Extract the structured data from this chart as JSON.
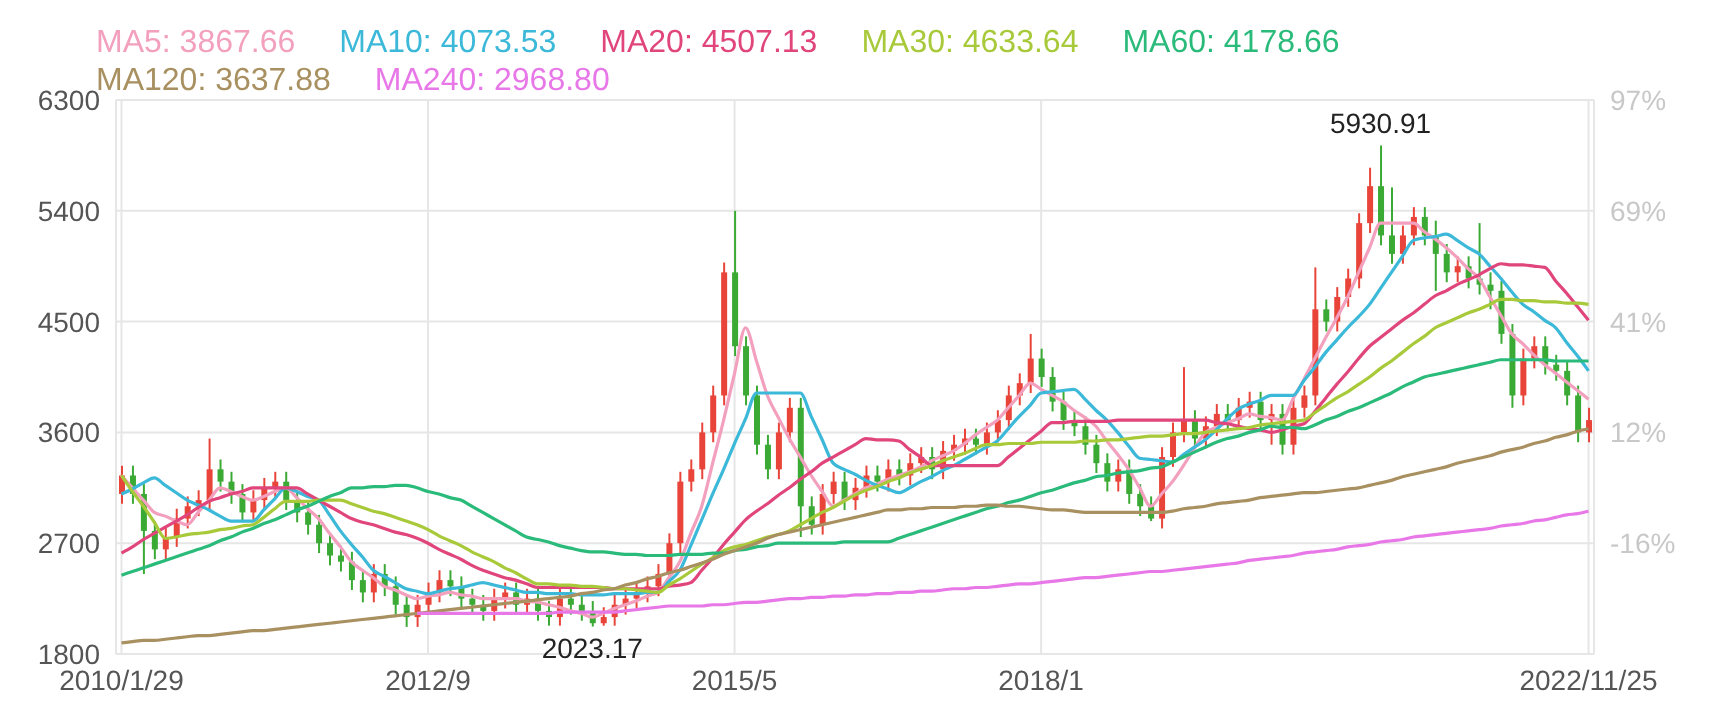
{
  "chart_data": {
    "type": "candlestick",
    "categories": [
      "2010/1/29",
      null,
      null,
      null,
      null,
      null,
      null,
      null,
      null,
      null,
      null,
      null,
      null,
      null,
      null,
      null,
      null,
      null,
      null,
      null,
      null,
      null,
      null,
      null,
      null,
      null,
      null,
      null,
      "2012/9",
      null,
      null,
      null,
      null,
      null,
      null,
      null,
      null,
      null,
      null,
      null,
      null,
      null,
      null,
      null,
      null,
      null,
      null,
      null,
      null,
      null,
      null,
      null,
      null,
      null,
      null,
      null,
      "2015/5",
      null,
      null,
      null,
      null,
      null,
      null,
      null,
      null,
      null,
      null,
      null,
      null,
      null,
      null,
      null,
      null,
      null,
      null,
      null,
      null,
      null,
      null,
      null,
      null,
      null,
      null,
      null,
      "2018/1",
      null,
      null,
      null,
      null,
      null,
      null,
      null,
      null,
      null,
      null,
      null,
      null,
      null,
      null,
      null,
      null,
      null,
      null,
      null,
      null,
      null,
      null,
      null,
      null,
      null,
      null,
      null,
      null,
      null,
      null,
      null,
      null,
      null,
      null,
      null,
      null,
      null,
      null,
      null,
      null,
      null,
      null,
      null,
      null,
      null,
      null,
      null,
      null,
      null,
      "2022/11/25"
    ],
    "ohlc": [
      [
        3100,
        3330,
        3020,
        3250
      ],
      [
        3250,
        3330,
        3020,
        3100
      ],
      [
        3100,
        3180,
        2450,
        2800
      ],
      [
        2800,
        2880,
        2570,
        2650
      ],
      [
        2650,
        2830,
        2570,
        2750
      ],
      [
        2750,
        2980,
        2670,
        2900
      ],
      [
        2900,
        3080,
        2820,
        3000
      ],
      [
        3000,
        3130,
        2920,
        3050
      ],
      [
        3050,
        3550,
        2970,
        3300
      ],
      [
        3300,
        3380,
        3120,
        3200
      ],
      [
        3200,
        3280,
        3020,
        3100
      ],
      [
        3100,
        3180,
        2870,
        2950
      ],
      [
        2950,
        3130,
        2870,
        3050
      ],
      [
        3050,
        3230,
        2970,
        3150
      ],
      [
        3150,
        3280,
        3070,
        3200
      ],
      [
        3200,
        3280,
        2970,
        3050
      ],
      [
        3050,
        3130,
        2870,
        2950
      ],
      [
        2950,
        3030,
        2770,
        2850
      ],
      [
        2850,
        2930,
        2620,
        2700
      ],
      [
        2700,
        2780,
        2520,
        2600
      ],
      [
        2600,
        2680,
        2470,
        2550
      ],
      [
        2550,
        2630,
        2320,
        2400
      ],
      [
        2400,
        2480,
        2220,
        2300
      ],
      [
        2300,
        2530,
        2220,
        2450
      ],
      [
        2450,
        2530,
        2270,
        2350
      ],
      [
        2350,
        2430,
        2120,
        2200
      ],
      [
        2200,
        2280,
        2020,
        2100
      ],
      [
        2100,
        2280,
        2020,
        2200
      ],
      [
        2200,
        2380,
        2120,
        2300
      ],
      [
        2300,
        2480,
        2220,
        2400
      ],
      [
        2400,
        2480,
        2270,
        2350
      ],
      [
        2350,
        2430,
        2170,
        2250
      ],
      [
        2250,
        2330,
        2120,
        2200
      ],
      [
        2200,
        2280,
        2070,
        2150
      ],
      [
        2150,
        2330,
        2070,
        2250
      ],
      [
        2250,
        2380,
        2170,
        2300
      ],
      [
        2300,
        2380,
        2120,
        2200
      ],
      [
        2200,
        2330,
        2120,
        2250
      ],
      [
        2250,
        2330,
        2070,
        2150
      ],
      [
        2150,
        2230,
        2030,
        2100
      ],
      [
        2100,
        2330,
        2030,
        2250
      ],
      [
        2250,
        2330,
        2120,
        2200
      ],
      [
        2200,
        2280,
        2070,
        2150
      ],
      [
        2150,
        2230,
        2023.17,
        2050
      ],
      [
        2050,
        2180,
        2030,
        2100
      ],
      [
        2100,
        2280,
        2030,
        2200
      ],
      [
        2200,
        2330,
        2120,
        2250
      ],
      [
        2250,
        2380,
        2170,
        2300
      ],
      [
        2300,
        2430,
        2220,
        2350
      ],
      [
        2350,
        2530,
        2270,
        2450
      ],
      [
        2450,
        2780,
        2370,
        2700
      ],
      [
        2700,
        3280,
        2620,
        3200
      ],
      [
        3200,
        3380,
        3120,
        3300
      ],
      [
        3300,
        3680,
        3220,
        3600
      ],
      [
        3600,
        3980,
        3520,
        3900
      ],
      [
        3900,
        4980,
        3820,
        4900
      ],
      [
        4900,
        5400,
        4220,
        4300
      ],
      [
        4300,
        4380,
        3820,
        3900
      ],
      [
        3900,
        3980,
        3420,
        3500
      ],
      [
        3500,
        3580,
        3220,
        3300
      ],
      [
        3300,
        3680,
        3220,
        3600
      ],
      [
        3600,
        3880,
        3520,
        3800
      ],
      [
        3800,
        3880,
        2750,
        3000
      ],
      [
        3000,
        3080,
        2770,
        2850
      ],
      [
        2850,
        3180,
        2770,
        3100
      ],
      [
        3100,
        3280,
        3020,
        3200
      ],
      [
        3200,
        3280,
        2970,
        3050
      ],
      [
        3050,
        3230,
        2970,
        3150
      ],
      [
        3150,
        3330,
        3070,
        3250
      ],
      [
        3250,
        3330,
        3120,
        3200
      ],
      [
        3200,
        3380,
        3120,
        3300
      ],
      [
        3300,
        3380,
        3170,
        3250
      ],
      [
        3250,
        3430,
        3170,
        3350
      ],
      [
        3350,
        3480,
        3270,
        3400
      ],
      [
        3400,
        3480,
        3220,
        3300
      ],
      [
        3300,
        3530,
        3220,
        3450
      ],
      [
        3450,
        3580,
        3370,
        3500
      ],
      [
        3500,
        3630,
        3420,
        3550
      ],
      [
        3550,
        3630,
        3420,
        3500
      ],
      [
        3500,
        3680,
        3420,
        3600
      ],
      [
        3600,
        3780,
        3520,
        3700
      ],
      [
        3700,
        3980,
        3620,
        3900
      ],
      [
        3900,
        4080,
        3820,
        4000
      ],
      [
        4000,
        4400,
        3920,
        4200
      ],
      [
        4200,
        4280,
        3970,
        4050
      ],
      [
        4050,
        4130,
        3770,
        3850
      ],
      [
        3850,
        3930,
        3620,
        3700
      ],
      [
        3700,
        3780,
        3570,
        3650
      ],
      [
        3650,
        3730,
        3420,
        3500
      ],
      [
        3500,
        3580,
        3270,
        3350
      ],
      [
        3350,
        3430,
        3120,
        3200
      ],
      [
        3200,
        3380,
        3120,
        3300
      ],
      [
        3300,
        3380,
        3020,
        3100
      ],
      [
        3100,
        3180,
        2920,
        3000
      ],
      [
        3000,
        3080,
        2880,
        2900
      ],
      [
        2900,
        3480,
        2820,
        3400
      ],
      [
        3400,
        3680,
        3320,
        3600
      ],
      [
        3600,
        4130,
        3520,
        3700
      ],
      [
        3700,
        3780,
        3470,
        3550
      ],
      [
        3550,
        3730,
        3470,
        3650
      ],
      [
        3650,
        3830,
        3570,
        3750
      ],
      [
        3750,
        3830,
        3620,
        3700
      ],
      [
        3700,
        3880,
        3620,
        3800
      ],
      [
        3800,
        3930,
        3720,
        3850
      ],
      [
        3850,
        3930,
        3620,
        3700
      ],
      [
        3700,
        3830,
        3500,
        3750
      ],
      [
        3750,
        3830,
        3420,
        3500
      ],
      [
        3500,
        3880,
        3420,
        3800
      ],
      [
        3800,
        3980,
        3720,
        3900
      ],
      [
        3900,
        4940,
        3820,
        4600
      ],
      [
        4600,
        4680,
        4420,
        4500
      ],
      [
        4500,
        4780,
        4420,
        4700
      ],
      [
        4700,
        4930,
        4620,
        4850
      ],
      [
        4850,
        5380,
        4770,
        5300
      ],
      [
        5300,
        5750,
        5220,
        5600
      ],
      [
        5600,
        5930.91,
        5120,
        5200
      ],
      [
        5200,
        5590,
        4970,
        5050
      ],
      [
        5050,
        5280,
        4970,
        5200
      ],
      [
        5200,
        5430,
        5120,
        5350
      ],
      [
        5350,
        5430,
        5120,
        5200
      ],
      [
        5200,
        5320,
        4750,
        5050
      ],
      [
        5050,
        5130,
        4820,
        4900
      ],
      [
        4900,
        5030,
        4820,
        4950
      ],
      [
        4950,
        5030,
        4770,
        4850
      ],
      [
        4850,
        5300,
        4720,
        4800
      ],
      [
        4800,
        4900,
        4600,
        4750
      ],
      [
        4750,
        4830,
        4320,
        4400
      ],
      [
        4400,
        4480,
        3800,
        3900
      ],
      [
        3900,
        4280,
        3820,
        4200
      ],
      [
        4200,
        4380,
        4120,
        4300
      ],
      [
        4300,
        4380,
        4070,
        4150
      ],
      [
        4150,
        4230,
        4020,
        4100
      ],
      [
        4100,
        4180,
        3820,
        3900
      ],
      [
        3900,
        3980,
        3520,
        3600
      ],
      [
        3600,
        3800,
        3520,
        3700
      ]
    ],
    "series": [
      {
        "type": "line",
        "name": "MA5: 3867.66",
        "color": "#f2a0bd",
        "values": [
          3250,
          3150,
          3050,
          2950,
          2920,
          2880,
          2850,
          2950,
          3050,
          3150,
          3120,
          3080,
          3050,
          3080,
          3120,
          3150,
          3070,
          2980,
          2900,
          2780,
          2670,
          2550,
          2480,
          2420,
          2350,
          2320,
          2280,
          2250,
          2270,
          2280,
          2300,
          2280,
          2270,
          2250,
          2250,
          2250,
          2250,
          2230,
          2220,
          2200,
          2180,
          2150,
          2130,
          2100,
          2130,
          2170,
          2200,
          2230,
          2270,
          2300,
          2420,
          2550,
          2780,
          3000,
          3350,
          3700,
          4080,
          4450,
          4180,
          3900,
          3720,
          3550,
          3400,
          3250,
          3120,
          3000,
          3050,
          3100,
          3150,
          3180,
          3220,
          3250,
          3280,
          3320,
          3370,
          3410,
          3450,
          3510,
          3580,
          3640,
          3700,
          3800,
          3900,
          4000,
          3950,
          3900,
          3850,
          3780,
          3720,
          3650,
          3530,
          3420,
          3300,
          3150,
          3000,
          3100,
          3200,
          3330,
          3470,
          3600,
          3640,
          3680,
          3710,
          3750,
          3730,
          3720,
          3700,
          3870,
          4030,
          4200,
          4370,
          4530,
          4700,
          4900,
          5100,
          5300,
          5300,
          5300,
          5300,
          5230,
          5170,
          5100,
          5020,
          4930,
          4850,
          4700,
          4550,
          4400,
          4320,
          4230,
          4150,
          4080,
          4010,
          3940,
          3870
        ]
      },
      {
        "type": "line",
        "name": "MA10: 4073.53",
        "color": "#3cb8d8",
        "values": [
          3100,
          3140,
          3190,
          3230,
          3170,
          3110,
          3050,
          3010,
          2970,
          2920,
          2880,
          2880,
          2880,
          2970,
          3060,
          3150,
          3120,
          3080,
          3050,
          2930,
          2800,
          2690,
          2590,
          2480,
          2430,
          2380,
          2330,
          2310,
          2290,
          2310,
          2330,
          2340,
          2360,
          2380,
          2360,
          2340,
          2320,
          2300,
          2300,
          2290,
          2290,
          2290,
          2280,
          2280,
          2280,
          2290,
          2290,
          2290,
          2300,
          2300,
          2390,
          2480,
          2680,
          2890,
          3100,
          3300,
          3510,
          3710,
          3920,
          3920,
          3920,
          3920,
          3920,
          3730,
          3540,
          3350,
          3300,
          3260,
          3210,
          3170,
          3140,
          3110,
          3150,
          3200,
          3240,
          3290,
          3330,
          3380,
          3430,
          3480,
          3530,
          3630,
          3730,
          3820,
          3920,
          3930,
          3940,
          3950,
          3870,
          3780,
          3700,
          3600,
          3490,
          3390,
          3380,
          3370,
          3360,
          3420,
          3480,
          3540,
          3620,
          3710,
          3790,
          3830,
          3860,
          3900,
          3900,
          3900,
          4020,
          4130,
          4250,
          4350,
          4450,
          4540,
          4640,
          4770,
          4900,
          5030,
          5160,
          5180,
          5190,
          5210,
          5160,
          5100,
          5050,
          4950,
          4850,
          4740,
          4640,
          4580,
          4510,
          4450,
          4330,
          4220,
          4100
        ]
      },
      {
        "type": "line",
        "name": "MA20: 4507.13",
        "color": "#e0457b",
        "values": [
          2620,
          2670,
          2730,
          2780,
          2830,
          2880,
          2930,
          2990,
          3040,
          3070,
          3100,
          3120,
          3150,
          3150,
          3150,
          3150,
          3150,
          3100,
          3050,
          3000,
          2950,
          2900,
          2870,
          2850,
          2820,
          2790,
          2770,
          2740,
          2700,
          2650,
          2610,
          2570,
          2520,
          2480,
          2450,
          2420,
          2400,
          2370,
          2340,
          2340,
          2340,
          2340,
          2340,
          2340,
          2340,
          2330,
          2330,
          2330,
          2330,
          2330,
          2350,
          2360,
          2380,
          2480,
          2580,
          2690,
          2790,
          2890,
          2960,
          3020,
          3090,
          3150,
          3220,
          3280,
          3350,
          3400,
          3450,
          3500,
          3550,
          3540,
          3540,
          3530,
          3460,
          3400,
          3330,
          3330,
          3330,
          3330,
          3330,
          3330,
          3330,
          3400,
          3470,
          3540,
          3610,
          3680,
          3680,
          3690,
          3690,
          3690,
          3690,
          3700,
          3700,
          3700,
          3700,
          3700,
          3700,
          3700,
          3700,
          3700,
          3680,
          3670,
          3650,
          3630,
          3620,
          3600,
          3620,
          3650,
          3670,
          3770,
          3880,
          3990,
          4090,
          4200,
          4300,
          4370,
          4440,
          4510,
          4570,
          4640,
          4710,
          4750,
          4800,
          4840,
          4880,
          4930,
          4970,
          4960,
          4960,
          4950,
          4940,
          4830,
          4730,
          4620,
          4510
        ]
      },
      {
        "type": "line",
        "name": "MA30: 4633.64",
        "color": "#a8c93a",
        "values": [
          3250,
          3120,
          3000,
          2870,
          2740,
          2750,
          2770,
          2780,
          2790,
          2810,
          2820,
          2840,
          2850,
          2910,
          2980,
          3040,
          3040,
          3040,
          3050,
          3050,
          3050,
          3020,
          2990,
          2960,
          2940,
          2910,
          2880,
          2850,
          2810,
          2760,
          2720,
          2680,
          2630,
          2590,
          2550,
          2500,
          2460,
          2410,
          2370,
          2370,
          2360,
          2360,
          2350,
          2350,
          2340,
          2330,
          2330,
          2320,
          2310,
          2300,
          2360,
          2410,
          2470,
          2530,
          2580,
          2640,
          2670,
          2690,
          2720,
          2750,
          2770,
          2800,
          2850,
          2900,
          2950,
          2990,
          3040,
          3090,
          3130,
          3160,
          3200,
          3230,
          3270,
          3300,
          3330,
          3370,
          3400,
          3430,
          3470,
          3500,
          3500,
          3510,
          3510,
          3510,
          3520,
          3520,
          3520,
          3520,
          3530,
          3530,
          3540,
          3540,
          3550,
          3560,
          3570,
          3570,
          3580,
          3590,
          3590,
          3600,
          3610,
          3620,
          3630,
          3640,
          3660,
          3670,
          3680,
          3690,
          3700,
          3760,
          3820,
          3880,
          3930,
          3990,
          4050,
          4120,
          4180,
          4250,
          4320,
          4380,
          4450,
          4490,
          4530,
          4570,
          4600,
          4640,
          4680,
          4680,
          4670,
          4670,
          4660,
          4660,
          4650,
          4650,
          4640
        ]
      },
      {
        "type": "line",
        "name": "MA60: 4178.66",
        "color": "#2aba7a",
        "values": [
          2440,
          2470,
          2500,
          2530,
          2560,
          2590,
          2620,
          2650,
          2680,
          2720,
          2750,
          2790,
          2820,
          2860,
          2890,
          2930,
          2970,
          3000,
          3040,
          3080,
          3110,
          3150,
          3150,
          3160,
          3160,
          3170,
          3170,
          3150,
          3120,
          3100,
          3070,
          3050,
          3000,
          2950,
          2900,
          2850,
          2800,
          2750,
          2730,
          2710,
          2680,
          2660,
          2640,
          2630,
          2630,
          2620,
          2610,
          2610,
          2600,
          2600,
          2600,
          2610,
          2610,
          2610,
          2620,
          2620,
          2640,
          2650,
          2670,
          2680,
          2700,
          2700,
          2700,
          2700,
          2700,
          2700,
          2710,
          2710,
          2710,
          2710,
          2710,
          2740,
          2770,
          2800,
          2830,
          2860,
          2890,
          2920,
          2950,
          2980,
          3000,
          3030,
          3050,
          3080,
          3110,
          3130,
          3160,
          3190,
          3210,
          3240,
          3250,
          3270,
          3280,
          3290,
          3310,
          3320,
          3360,
          3400,
          3440,
          3480,
          3520,
          3550,
          3570,
          3600,
          3620,
          3650,
          3640,
          3640,
          3630,
          3660,
          3700,
          3730,
          3770,
          3800,
          3840,
          3880,
          3920,
          3970,
          4010,
          4050,
          4070,
          4090,
          4110,
          4130,
          4150,
          4170,
          4190,
          4190,
          4190,
          4190,
          4190,
          4180,
          4180,
          4180,
          4180
        ]
      },
      {
        "type": "line",
        "name": "MA120: 3637.88",
        "color": "#a89060",
        "values": [
          1890,
          1900,
          1910,
          1910,
          1920,
          1930,
          1940,
          1950,
          1950,
          1960,
          1970,
          1980,
          1990,
          1990,
          2000,
          2010,
          2020,
          2030,
          2040,
          2050,
          2060,
          2070,
          2080,
          2090,
          2100,
          2110,
          2120,
          2130,
          2140,
          2150,
          2160,
          2170,
          2180,
          2190,
          2200,
          2210,
          2220,
          2230,
          2240,
          2250,
          2260,
          2270,
          2290,
          2300,
          2320,
          2330,
          2360,
          2380,
          2410,
          2430,
          2460,
          2480,
          2510,
          2540,
          2570,
          2610,
          2640,
          2670,
          2700,
          2740,
          2770,
          2790,
          2810,
          2830,
          2850,
          2870,
          2890,
          2910,
          2930,
          2950,
          2970,
          2970,
          2980,
          2980,
          2990,
          2990,
          2990,
          3000,
          3000,
          3010,
          3010,
          3000,
          3000,
          2990,
          2980,
          2970,
          2970,
          2960,
          2950,
          2950,
          2950,
          2950,
          2950,
          2950,
          2950,
          2950,
          2960,
          2980,
          2990,
          3000,
          3020,
          3030,
          3040,
          3050,
          3070,
          3080,
          3090,
          3100,
          3110,
          3110,
          3120,
          3130,
          3140,
          3150,
          3170,
          3190,
          3210,
          3240,
          3260,
          3280,
          3300,
          3320,
          3350,
          3370,
          3390,
          3410,
          3440,
          3460,
          3480,
          3510,
          3530,
          3560,
          3580,
          3610,
          3630
        ]
      },
      {
        "type": "line",
        "name": "MA240: 2968.80",
        "color": "#e878e8",
        "values": [
          null,
          null,
          null,
          null,
          null,
          null,
          null,
          null,
          null,
          null,
          null,
          null,
          null,
          null,
          null,
          null,
          null,
          null,
          null,
          null,
          null,
          null,
          null,
          null,
          null,
          null,
          null,
          2130,
          2130,
          2130,
          2130,
          2130,
          2130,
          2130,
          2130,
          2130,
          2130,
          2130,
          2130,
          2130,
          2140,
          2140,
          2140,
          2140,
          2140,
          2140,
          2150,
          2160,
          2170,
          2180,
          2190,
          2190,
          2190,
          2190,
          2200,
          2200,
          2210,
          2220,
          2220,
          2230,
          2240,
          2250,
          2250,
          2260,
          2260,
          2270,
          2270,
          2280,
          2280,
          2290,
          2290,
          2300,
          2300,
          2310,
          2310,
          2320,
          2330,
          2330,
          2340,
          2340,
          2350,
          2360,
          2370,
          2370,
          2380,
          2390,
          2400,
          2410,
          2420,
          2420,
          2430,
          2440,
          2450,
          2460,
          2470,
          2470,
          2480,
          2490,
          2500,
          2510,
          2520,
          2530,
          2540,
          2560,
          2570,
          2580,
          2590,
          2600,
          2620,
          2630,
          2640,
          2650,
          2670,
          2680,
          2690,
          2710,
          2720,
          2730,
          2750,
          2760,
          2770,
          2780,
          2790,
          2800,
          2810,
          2820,
          2840,
          2850,
          2860,
          2880,
          2890,
          2910,
          2930,
          2940,
          2960
        ]
      }
    ],
    "ylim": [
      1800,
      6300
    ],
    "yticks": [
      1800,
      2700,
      3600,
      4500,
      5400,
      6300
    ],
    "y2lim": [
      -43.75,
      96.875
    ],
    "y2ticks": [
      {
        "value": -15.625,
        "label": "-16%"
      },
      {
        "value": 12.5,
        "label": "12%"
      },
      {
        "value": 40.625,
        "label": "41%"
      },
      {
        "value": 68.75,
        "label": "69%"
      },
      {
        "value": 96.875,
        "label": "97%"
      }
    ],
    "annotations": [
      {
        "text": "5930.91",
        "y": 5930.91
      },
      {
        "text": "2023.17",
        "y": 2023.17
      }
    ],
    "grid": true,
    "legend": "top left"
  }
}
